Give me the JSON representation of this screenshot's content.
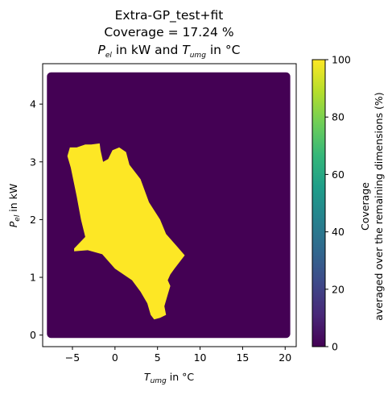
{
  "chart_data": {
    "type": "heatmap",
    "title_lines": [
      "Extra-GP_test+fit",
      "Coverage = 17.24 %"
    ],
    "title_line3": {
      "base1": "P",
      "sub1": "el",
      "mid": " in kW and ",
      "base2": "T",
      "sub2": "umg",
      "end": " in °C"
    },
    "xlabel": {
      "base": "T",
      "sub": "umg",
      "rest": " in °C"
    },
    "ylabel": {
      "base": "P",
      "sub": "el",
      "rest": " in kW"
    },
    "xlim": [
      -8.5,
      21.3
    ],
    "ylim": [
      -0.2,
      4.7
    ],
    "x_ticks": [
      {
        "value": -5,
        "label": "−5"
      },
      {
        "value": 0,
        "label": "0"
      },
      {
        "value": 5,
        "label": "5"
      },
      {
        "value": 10,
        "label": "10"
      },
      {
        "value": 15,
        "label": "15"
      },
      {
        "value": 20,
        "label": "20"
      }
    ],
    "y_ticks": [
      {
        "value": 0,
        "label": "0"
      },
      {
        "value": 1,
        "label": "1"
      },
      {
        "value": 2,
        "label": "2"
      },
      {
        "value": 3,
        "label": "3"
      },
      {
        "value": 4,
        "label": "4"
      }
    ],
    "domain": {
      "x": [
        -8,
        20.6
      ],
      "y": [
        -0.05,
        4.55
      ]
    },
    "background_value": 0,
    "covered_value": 100,
    "covered_region_polygon": [
      [
        -2.8,
        3.3
      ],
      [
        -1.8,
        3.32
      ],
      [
        -1.7,
        3.2
      ],
      [
        -1.4,
        3.0
      ],
      [
        -0.8,
        3.05
      ],
      [
        -0.3,
        3.2
      ],
      [
        0.5,
        3.25
      ],
      [
        1.3,
        3.17
      ],
      [
        1.7,
        2.95
      ],
      [
        3.0,
        2.7
      ],
      [
        4.0,
        2.3
      ],
      [
        5.3,
        2.0
      ],
      [
        6.0,
        1.75
      ],
      [
        7.2,
        1.55
      ],
      [
        8.2,
        1.38
      ],
      [
        7.0,
        1.15
      ],
      [
        6.5,
        1.05
      ],
      [
        6.2,
        0.95
      ],
      [
        6.5,
        0.85
      ],
      [
        6.2,
        0.7
      ],
      [
        5.8,
        0.5
      ],
      [
        6.0,
        0.35
      ],
      [
        5.3,
        0.3
      ],
      [
        4.6,
        0.27
      ],
      [
        4.2,
        0.35
      ],
      [
        3.8,
        0.55
      ],
      [
        3.0,
        0.75
      ],
      [
        2.0,
        0.95
      ],
      [
        0.0,
        1.15
      ],
      [
        -1.5,
        1.4
      ],
      [
        -3.2,
        1.47
      ],
      [
        -4.8,
        1.45
      ],
      [
        -4.8,
        1.5
      ],
      [
        -3.5,
        1.7
      ],
      [
        -4.0,
        2.0
      ],
      [
        -4.5,
        2.4
      ],
      [
        -5.2,
        2.9
      ],
      [
        -5.6,
        3.1
      ],
      [
        -5.3,
        3.25
      ],
      [
        -4.5,
        3.25
      ],
      [
        -3.5,
        3.3
      ]
    ],
    "colorbar": {
      "label_line1": "Coverage",
      "label_line2": "averaged over the remaining dimensions (%)",
      "range": [
        0,
        100
      ],
      "ticks": [
        0,
        20,
        40,
        60,
        80,
        100
      ]
    },
    "colors": {
      "low": "#440154",
      "high": "#fde725",
      "viridis_stops": [
        "#440154",
        "#482878",
        "#3e4989",
        "#31688e",
        "#26828e",
        "#1f9e89",
        "#35b779",
        "#6ece58",
        "#b5de2b",
        "#fde725"
      ]
    }
  }
}
